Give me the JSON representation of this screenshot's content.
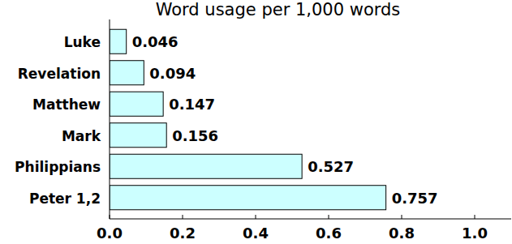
{
  "chart_data": {
    "type": "bar",
    "title": "Word usage per 1,000 words",
    "orientation": "horizontal",
    "categories": [
      "Luke",
      "Revelation",
      "Matthew",
      "Mark",
      "Philippians",
      "Peter 1,2"
    ],
    "values": [
      0.046,
      0.094,
      0.147,
      0.156,
      0.527,
      0.757
    ],
    "color": "#ccffff",
    "xlim": [
      0,
      1.1
    ],
    "xticks": [
      {
        "value": 0,
        "label": "0.0"
      },
      {
        "value": 0.2,
        "label": "0.2"
      },
      {
        "value": 0.4,
        "label": "0.4"
      },
      {
        "value": 0.6,
        "label": "0.6"
      },
      {
        "value": 0.8,
        "label": "0.8"
      },
      {
        "value": 1,
        "label": "1.0"
      }
    ],
    "grid": false,
    "data_labels": true
  }
}
